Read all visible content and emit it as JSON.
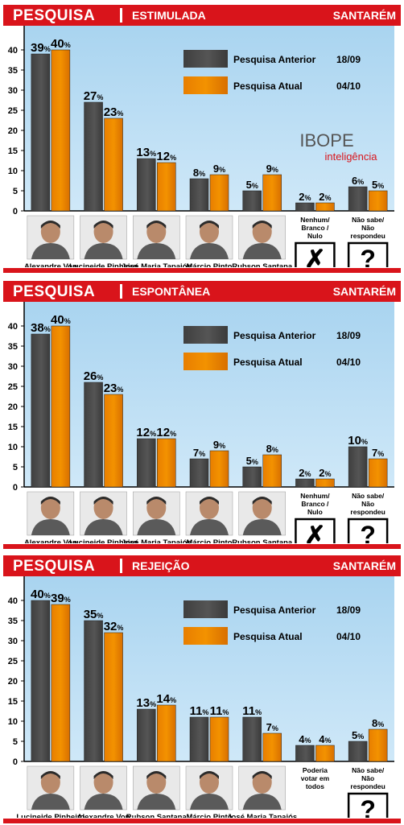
{
  "chart_data": [
    {
      "type": "bar",
      "header_left": "PESQUISA",
      "header_mid": "ESTIMULADA",
      "header_right": "SANTARÉM",
      "categories": [
        "Alexandre Von",
        "Lucineide Pinheiro",
        "José Maria Tapajós",
        "Márcio Pinto",
        "Rubson Santana",
        "Nenhum/ Branco / Nulo",
        "Não sabe/ Não respondeu"
      ],
      "category_icons": [
        "photo",
        "photo",
        "photo",
        "photo",
        "photo",
        "x-icon",
        "question-icon"
      ],
      "series": [
        {
          "name": "Pesquisa Anterior",
          "date": "18/09",
          "color": "#555555",
          "values": [
            39,
            27,
            13,
            8,
            5,
            2,
            6
          ]
        },
        {
          "name": "Pesquisa Atual",
          "date": "04/10",
          "color": "#f39200",
          "values": [
            40,
            23,
            12,
            9,
            9,
            2,
            5
          ]
        }
      ],
      "ylim": [
        0,
        40
      ],
      "yticks": [
        0,
        5,
        10,
        15,
        20,
        25,
        30,
        35,
        40
      ],
      "value_suffix": "%",
      "watermark": {
        "title": "IBOPE",
        "subtitle": "inteligência"
      }
    },
    {
      "type": "bar",
      "header_left": "PESQUISA",
      "header_mid": "ESPONTÂNEA",
      "header_right": "SANTARÉM",
      "categories": [
        "Alexandre Von",
        "Lucineide Pinheiro",
        "José Maria Tapajós",
        "Márcio Pinto",
        "Rubson Santana",
        "Nenhum/ Branco / Nulo",
        "Não sabe/ Não respondeu"
      ],
      "category_icons": [
        "photo",
        "photo",
        "photo",
        "photo",
        "photo",
        "x-icon",
        "question-icon"
      ],
      "series": [
        {
          "name": "Pesquisa Anterior",
          "date": "18/09",
          "color": "#555555",
          "values": [
            38,
            26,
            12,
            7,
            5,
            2,
            10
          ]
        },
        {
          "name": "Pesquisa Atual",
          "date": "04/10",
          "color": "#f39200",
          "values": [
            40,
            23,
            12,
            9,
            8,
            2,
            7
          ]
        }
      ],
      "ylim": [
        0,
        40
      ],
      "yticks": [
        0,
        5,
        10,
        15,
        20,
        25,
        30,
        35,
        40
      ],
      "value_suffix": "%"
    },
    {
      "type": "bar",
      "header_left": "PESQUISA",
      "header_mid": "REJEIÇÃO",
      "header_right": "SANTARÉM",
      "categories": [
        "Lucineide Pinheiro",
        "Alexandre Von",
        "Rubson Santana",
        "Márcio Pinto",
        "José Maria Tapajós",
        "Poderia votar em todos",
        "Não sabe/ Não respondeu"
      ],
      "category_icons": [
        "photo",
        "photo",
        "photo",
        "photo",
        "photo",
        "none",
        "question-icon"
      ],
      "series": [
        {
          "name": "Pesquisa Anterior",
          "date": "18/09",
          "color": "#555555",
          "values": [
            40,
            35,
            13,
            11,
            11,
            4,
            5
          ]
        },
        {
          "name": "Pesquisa Atual",
          "date": "04/10",
          "color": "#f39200",
          "values": [
            39,
            32,
            14,
            11,
            7,
            4,
            8
          ]
        }
      ],
      "ylim": [
        0,
        40
      ],
      "yticks": [
        0,
        5,
        10,
        15,
        20,
        25,
        30,
        35,
        40
      ],
      "value_suffix": "%"
    }
  ]
}
